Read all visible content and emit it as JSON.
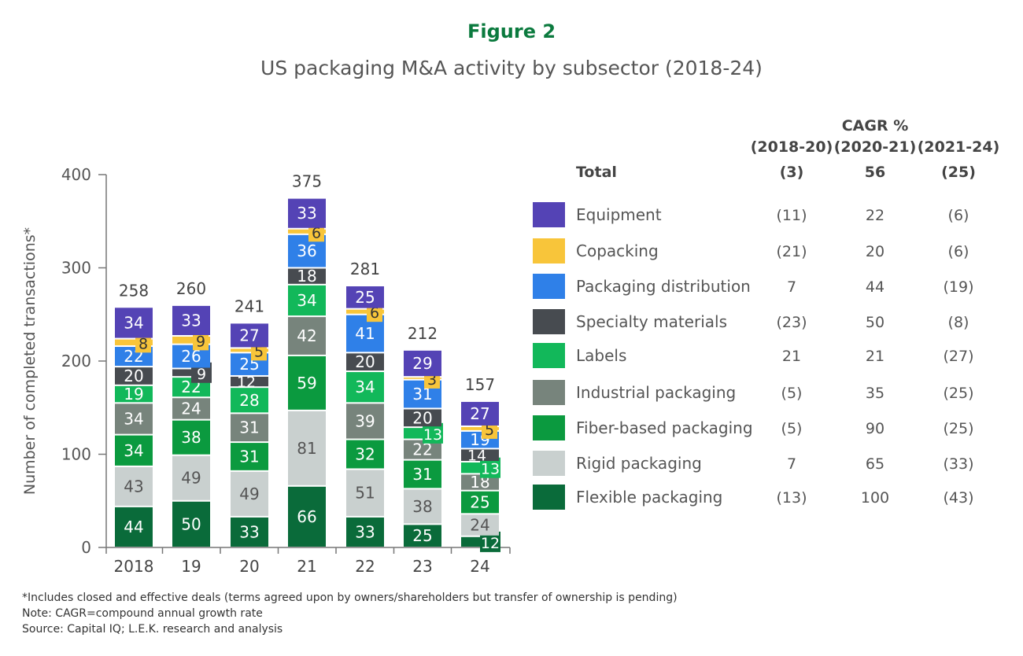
{
  "figure_label": "Figure 2",
  "chart_data": {
    "type": "bar",
    "stacked": true,
    "title": "US packaging M&A activity by subsector (2018-24)",
    "ylabel": "Number of completed transactions*",
    "xlabel": "",
    "ylim": [
      0,
      400
    ],
    "yticks": [
      0,
      100,
      200,
      300,
      400
    ],
    "grid": false,
    "legend_position": "right",
    "categories": [
      "2018",
      "19",
      "20",
      "21",
      "22",
      "23",
      "24"
    ],
    "totals": [
      258,
      260,
      241,
      375,
      281,
      212,
      157
    ],
    "series": [
      {
        "name": "Flexible packaging",
        "color": "#0a6b3a",
        "text_color": "#ffffff",
        "values": [
          44,
          50,
          33,
          66,
          33,
          25,
          12
        ]
      },
      {
        "name": "Rigid packaging",
        "color": "#c9d0cf",
        "text_color": "#555555",
        "values": [
          43,
          49,
          49,
          81,
          51,
          38,
          24
        ]
      },
      {
        "name": "Fiber-based packaging",
        "color": "#0b9a3f",
        "text_color": "#ffffff",
        "values": [
          34,
          38,
          31,
          59,
          32,
          31,
          25
        ]
      },
      {
        "name": "Industrial packaging",
        "color": "#77847c",
        "text_color": "#ffffff",
        "values": [
          34,
          24,
          31,
          42,
          39,
          22,
          18
        ]
      },
      {
        "name": "Labels",
        "color": "#12b85a",
        "text_color": "#ffffff",
        "values": [
          19,
          22,
          28,
          34,
          34,
          13,
          13
        ]
      },
      {
        "name": "Specialty materials",
        "color": "#474b50",
        "text_color": "#ffffff",
        "values": [
          20,
          9,
          12,
          18,
          20,
          20,
          14
        ]
      },
      {
        "name": "Packaging distribution",
        "color": "#2f80e8",
        "text_color": "#ffffff",
        "values": [
          22,
          26,
          25,
          36,
          41,
          31,
          19
        ]
      },
      {
        "name": "Copacking",
        "color": "#f8c53a",
        "text_color": "#333333",
        "values": [
          8,
          9,
          5,
          6,
          6,
          3,
          5
        ]
      },
      {
        "name": "Equipment",
        "color": "#5443b5",
        "text_color": "#ffffff",
        "values": [
          34,
          33,
          27,
          33,
          25,
          29,
          27
        ]
      }
    ]
  },
  "cagr_table": {
    "heading": "CAGR %",
    "periods": [
      "(2018-20)",
      "(2020-21)",
      "(2021-24)"
    ],
    "total_label": "Total",
    "total": [
      "(3)",
      "56",
      "(25)"
    ],
    "rows": [
      {
        "name": "Equipment",
        "values": [
          "(11)",
          "22",
          "(6)"
        ]
      },
      {
        "name": "Copacking",
        "values": [
          "(21)",
          "20",
          "(6)"
        ]
      },
      {
        "name": "Packaging distribution",
        "values": [
          "7",
          "44",
          "(19)"
        ]
      },
      {
        "name": "Specialty materials",
        "values": [
          "(23)",
          "50",
          "(8)"
        ]
      },
      {
        "name": "Labels",
        "values": [
          "21",
          "21",
          "(27)"
        ]
      },
      {
        "name": "Industrial packaging",
        "values": [
          "(5)",
          "35",
          "(25)"
        ]
      },
      {
        "name": "Fiber-based packaging",
        "values": [
          "(5)",
          "90",
          "(25)"
        ]
      },
      {
        "name": "Rigid packaging",
        "values": [
          "7",
          "65",
          "(33)"
        ]
      },
      {
        "name": "Flexible packaging",
        "values": [
          "(13)",
          "100",
          "(43)"
        ]
      }
    ]
  },
  "notes": [
    "*Includes closed and effective deals (terms agreed upon by owners/shareholders but transfer of ownership is pending)",
    "Note: CAGR=compound annual growth rate",
    "Source: Capital IQ; L.E.K. research and analysis"
  ]
}
